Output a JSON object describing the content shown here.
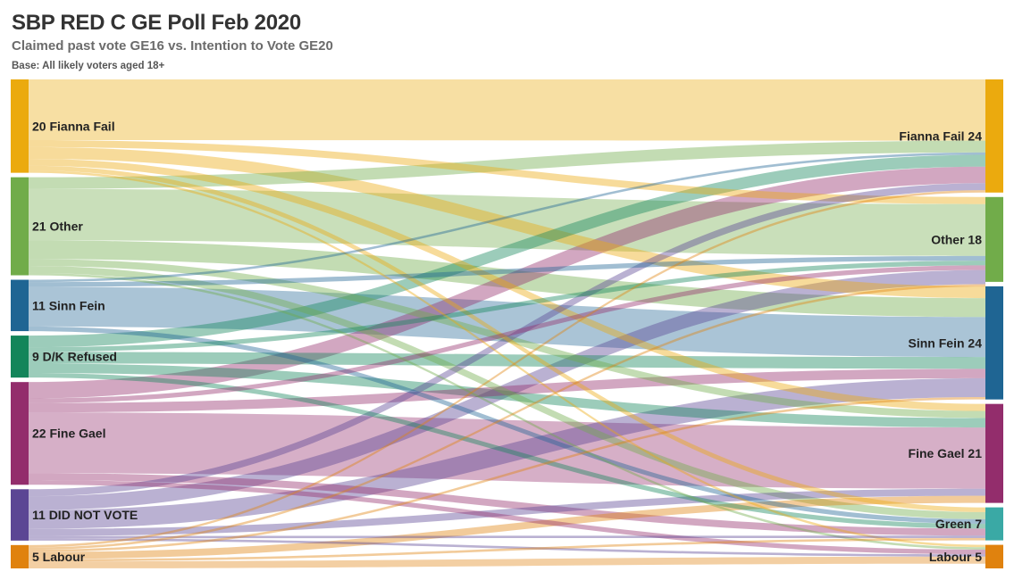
{
  "title": "SBP RED C GE Poll Feb 2020",
  "subtitle": "Claimed past vote GE16 vs. Intention to Vote GE20",
  "base": "Base: All likely voters aged 18+",
  "chart_data": {
    "type": "sankey",
    "left_axis": "Claimed past vote GE16",
    "right_axis": "Intention to Vote GE20",
    "left_nodes": [
      {
        "id": "ff",
        "label": "20 Fianna Fail",
        "value": 20,
        "color": "#EBAA0E"
      },
      {
        "id": "oth",
        "label": "21 Other",
        "value": 21,
        "color": "#71AC4A"
      },
      {
        "id": "sf",
        "label": "11 Sinn Fein",
        "value": 11,
        "color": "#1F6593"
      },
      {
        "id": "dk",
        "label": "9 D/K Refused",
        "value": 9,
        "color": "#13855A"
      },
      {
        "id": "fg",
        "label": "22 Fine Gael",
        "value": 22,
        "color": "#932D6C"
      },
      {
        "id": "dnv",
        "label": "11 DID NOT VOTE",
        "value": 11,
        "color": "#5B4694"
      },
      {
        "id": "lab",
        "label": "5 Labour",
        "value": 5,
        "color": "#E0820E"
      }
    ],
    "right_nodes": [
      {
        "id": "ff",
        "label": "Fianna Fail 24",
        "value": 24,
        "color": "#EBAA0E"
      },
      {
        "id": "oth",
        "label": "Other 18",
        "value": 18,
        "color": "#71AC4A"
      },
      {
        "id": "sf",
        "label": "Sinn Fein 24",
        "value": 24,
        "color": "#1F6593"
      },
      {
        "id": "fg",
        "label": "Fine Gael 21",
        "value": 21,
        "color": "#932D6C"
      },
      {
        "id": "gr",
        "label": "Green 7",
        "value": 7,
        "color": "#3AA9A5"
      },
      {
        "id": "lab",
        "label": "Labour 5",
        "value": 5,
        "color": "#E0820E"
      }
    ],
    "flows": [
      {
        "source": "ff",
        "target": "ff",
        "value": 13
      },
      {
        "source": "ff",
        "target": "oth",
        "value": 1.5
      },
      {
        "source": "ff",
        "target": "sf",
        "value": 2.5
      },
      {
        "source": "ff",
        "target": "fg",
        "value": 1.5
      },
      {
        "source": "ff",
        "target": "gr",
        "value": 1
      },
      {
        "source": "ff",
        "target": "lab",
        "value": 0.5
      },
      {
        "source": "oth",
        "target": "ff",
        "value": 2.5
      },
      {
        "source": "oth",
        "target": "oth",
        "value": 11
      },
      {
        "source": "oth",
        "target": "sf",
        "value": 4
      },
      {
        "source": "oth",
        "target": "fg",
        "value": 1.5
      },
      {
        "source": "oth",
        "target": "gr",
        "value": 1.5
      },
      {
        "source": "oth",
        "target": "lab",
        "value": 0.5
      },
      {
        "source": "sf",
        "target": "ff",
        "value": 0.5
      },
      {
        "source": "sf",
        "target": "oth",
        "value": 1
      },
      {
        "source": "sf",
        "target": "sf",
        "value": 8.5
      },
      {
        "source": "sf",
        "target": "gr",
        "value": 1
      },
      {
        "source": "dk",
        "target": "ff",
        "value": 2.5
      },
      {
        "source": "dk",
        "target": "oth",
        "value": 1
      },
      {
        "source": "dk",
        "target": "sf",
        "value": 2.5
      },
      {
        "source": "dk",
        "target": "fg",
        "value": 2
      },
      {
        "source": "dk",
        "target": "gr",
        "value": 1
      },
      {
        "source": "fg",
        "target": "ff",
        "value": 3.5
      },
      {
        "source": "fg",
        "target": "oth",
        "value": 1
      },
      {
        "source": "fg",
        "target": "sf",
        "value": 2
      },
      {
        "source": "fg",
        "target": "fg",
        "value": 13
      },
      {
        "source": "fg",
        "target": "gr",
        "value": 1.5
      },
      {
        "source": "fg",
        "target": "lab",
        "value": 1
      },
      {
        "source": "dnv",
        "target": "ff",
        "value": 1.5
      },
      {
        "source": "dnv",
        "target": "oth",
        "value": 3
      },
      {
        "source": "dnv",
        "target": "sf",
        "value": 4
      },
      {
        "source": "dnv",
        "target": "fg",
        "value": 1.5
      },
      {
        "source": "dnv",
        "target": "gr",
        "value": 0.5
      },
      {
        "source": "dnv",
        "target": "lab",
        "value": 0.5
      },
      {
        "source": "lab",
        "target": "ff",
        "value": 0.5
      },
      {
        "source": "lab",
        "target": "oth",
        "value": 0.5
      },
      {
        "source": "lab",
        "target": "sf",
        "value": 0.5
      },
      {
        "source": "lab",
        "target": "fg",
        "value": 1.5
      },
      {
        "source": "lab",
        "target": "gr",
        "value": 0.5
      },
      {
        "source": "lab",
        "target": "lab",
        "value": 1.5
      }
    ]
  }
}
